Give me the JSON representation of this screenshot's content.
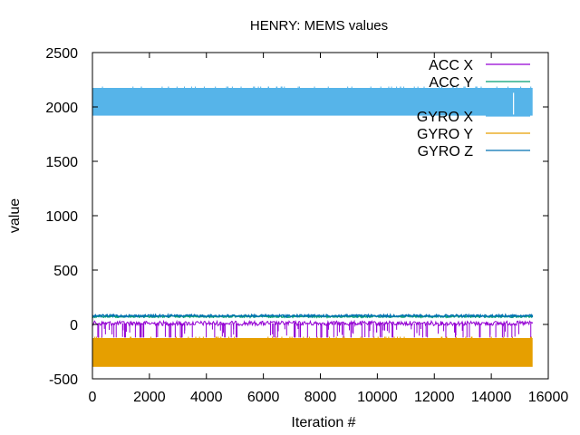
{
  "chart_data": {
    "type": "line",
    "title": "HENRY: MEMS values",
    "xlabel": "Iteration #",
    "ylabel": "value",
    "xlim": [
      0,
      16000
    ],
    "ylim": [
      -500,
      2500
    ],
    "x_ticks": [
      0,
      2000,
      4000,
      6000,
      8000,
      10000,
      12000,
      14000,
      16000
    ],
    "y_ticks": [
      -500,
      0,
      500,
      1000,
      1500,
      2000,
      2500
    ],
    "x_max_data": 15450,
    "grid": false,
    "legend_position": "top-right",
    "series": [
      {
        "name": "ACC X",
        "color": "#9400d3",
        "min": -120,
        "max": 30,
        "typical": 10
      },
      {
        "name": "ACC Y",
        "color": "#009e73",
        "min": 65,
        "max": 80,
        "typical": 72
      },
      {
        "name": "GYRO X",
        "color": "#56b4e9",
        "min": 1920,
        "max": 2175,
        "typical": 2050
      },
      {
        "name": "GYRO Y",
        "color": "#e69f00",
        "min": -390,
        "max": -125,
        "typical": -260
      },
      {
        "name": "GYRO Z",
        "color": "#0072b2",
        "min": 70,
        "max": 90,
        "typical": 80
      }
    ]
  }
}
